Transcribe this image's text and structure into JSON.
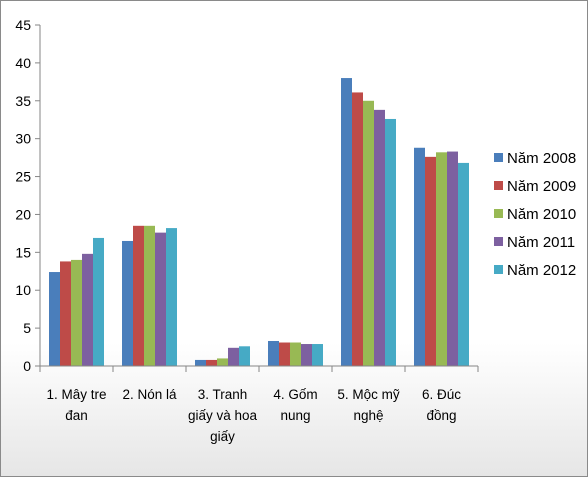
{
  "chart_data": {
    "type": "bar",
    "categories": [
      [
        "1. Mây tre",
        "đan"
      ],
      [
        "2. Nón lá"
      ],
      [
        "3. Tranh",
        "giấy và hoa",
        "giấy"
      ],
      [
        "4. Gốm",
        "nung"
      ],
      [
        "5. Mộc mỹ",
        "nghệ"
      ],
      [
        "6. Đúc",
        "đồng"
      ]
    ],
    "series": [
      {
        "name": "Năm 2008",
        "color": "#4a7ebb",
        "values": [
          12.4,
          16.5,
          0.8,
          3.3,
          38.0,
          28.8
        ]
      },
      {
        "name": "Năm 2009",
        "color": "#be4b48",
        "values": [
          13.8,
          18.5,
          0.8,
          3.1,
          36.1,
          27.6
        ]
      },
      {
        "name": "Năm 2010",
        "color": "#98b954",
        "values": [
          14.0,
          18.5,
          1.0,
          3.1,
          35.0,
          28.2
        ]
      },
      {
        "name": "Năm 2011",
        "color": "#7d60a0",
        "values": [
          14.8,
          17.6,
          2.4,
          2.9,
          33.8,
          28.3
        ]
      },
      {
        "name": "Năm 2012",
        "color": "#46aac5",
        "values": [
          16.9,
          18.2,
          2.6,
          2.9,
          32.6,
          26.8
        ]
      }
    ],
    "ylim": [
      0,
      45
    ],
    "yticks": [
      "0",
      "5",
      "10",
      "15",
      "20",
      "25",
      "30",
      "35",
      "40",
      "45"
    ],
    "grid": false,
    "legend": "right"
  }
}
